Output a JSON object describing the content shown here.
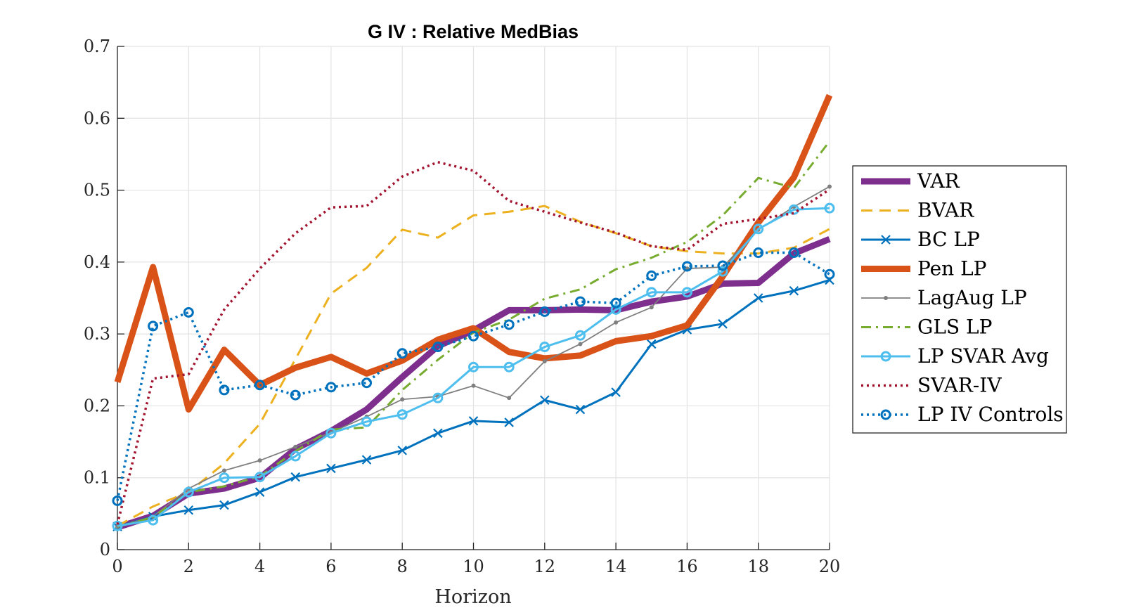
{
  "chart_data": {
    "type": "line",
    "title": "G IV : Relative MedBias",
    "xlabel": "Horizon",
    "ylabel": "",
    "xlim": [
      0,
      20
    ],
    "ylim": [
      0,
      0.7
    ],
    "xticks": [
      0,
      2,
      4,
      6,
      8,
      10,
      12,
      14,
      16,
      18,
      20
    ],
    "yticks": [
      0,
      0.1,
      0.2,
      0.3,
      0.4,
      0.5,
      0.6,
      0.7
    ],
    "xtick_labels": [
      "0",
      "2",
      "4",
      "6",
      "8",
      "10",
      "12",
      "14",
      "16",
      "18",
      "20"
    ],
    "ytick_labels": [
      "0",
      "0.1",
      "0.2",
      "0.3",
      "0.4",
      "0.5",
      "0.6",
      "0.7"
    ],
    "grid": true,
    "legend_position": "right",
    "x": [
      0,
      1,
      2,
      3,
      4,
      5,
      6,
      7,
      8,
      9,
      10,
      11,
      12,
      13,
      14,
      15,
      16,
      17,
      18,
      19,
      20
    ],
    "series": [
      {
        "name": "VAR",
        "color": "#7E2F8E",
        "style": "solid",
        "width": 9,
        "marker": "none",
        "values": [
          0.031,
          0.047,
          0.078,
          0.085,
          0.1,
          0.14,
          0.165,
          0.195,
          0.24,
          0.283,
          0.305,
          0.333,
          0.333,
          0.334,
          0.333,
          0.345,
          0.352,
          0.37,
          0.371,
          0.412,
          0.432
        ]
      },
      {
        "name": "BVAR",
        "color": "#EDB120",
        "style": "dashed",
        "width": 3,
        "marker": "none",
        "values": [
          0.033,
          0.06,
          0.08,
          0.12,
          0.175,
          0.265,
          0.356,
          0.392,
          0.445,
          0.434,
          0.465,
          0.47,
          0.478,
          0.456,
          0.44,
          0.422,
          0.415,
          0.412,
          0.412,
          0.42,
          0.446
        ]
      },
      {
        "name": "BC LP",
        "color": "#0072BD",
        "style": "solid",
        "width": 3,
        "marker": "x",
        "values": [
          0.032,
          0.046,
          0.055,
          0.062,
          0.08,
          0.101,
          0.113,
          0.125,
          0.138,
          0.162,
          0.179,
          0.177,
          0.208,
          0.195,
          0.219,
          0.286,
          0.306,
          0.314,
          0.35,
          0.36,
          0.375
        ]
      },
      {
        "name": "Pen LP",
        "color": "#D95319",
        "style": "solid",
        "width": 9,
        "marker": "none",
        "values": [
          0.233,
          0.393,
          0.195,
          0.278,
          0.229,
          0.253,
          0.268,
          0.245,
          0.263,
          0.292,
          0.308,
          0.275,
          0.266,
          0.27,
          0.29,
          0.297,
          0.312,
          0.38,
          0.455,
          0.518,
          0.632
        ]
      },
      {
        "name": "LagAug LP",
        "color": "#7F7F7F",
        "style": "solid",
        "width": 1.8,
        "marker": "dot",
        "values": [
          0.032,
          0.046,
          0.085,
          0.11,
          0.124,
          0.143,
          0.163,
          0.185,
          0.209,
          0.213,
          0.228,
          0.211,
          0.262,
          0.286,
          0.316,
          0.337,
          0.391,
          0.393,
          0.445,
          0.477,
          0.505
        ]
      },
      {
        "name": "GLS LP",
        "color": "#77AC30",
        "style": "dashdot",
        "width": 3,
        "marker": "none",
        "values": [
          0.032,
          0.045,
          0.08,
          0.088,
          0.102,
          0.137,
          0.167,
          0.17,
          0.222,
          0.264,
          0.302,
          0.32,
          0.349,
          0.362,
          0.39,
          0.406,
          0.428,
          0.465,
          0.517,
          0.503,
          0.568
        ]
      },
      {
        "name": "LP SVAR Avg",
        "color": "#4DBEEE",
        "style": "solid",
        "width": 3,
        "marker": "o",
        "values": [
          0.033,
          0.041,
          0.08,
          0.1,
          0.101,
          0.13,
          0.162,
          0.178,
          0.188,
          0.211,
          0.254,
          0.254,
          0.282,
          0.298,
          0.334,
          0.358,
          0.358,
          0.387,
          0.446,
          0.473,
          0.475
        ]
      },
      {
        "name": "SVAR-IV",
        "color": "#A2142F",
        "style": "dotted",
        "width": 3.5,
        "marker": "none",
        "values": [
          0.035,
          0.238,
          0.244,
          0.334,
          0.391,
          0.44,
          0.476,
          0.478,
          0.519,
          0.539,
          0.527,
          0.485,
          0.47,
          0.455,
          0.441,
          0.422,
          0.417,
          0.453,
          0.46,
          0.468,
          0.501
        ]
      },
      {
        "name": "LP IV Controls",
        "color": "#0072BD",
        "style": "dotted",
        "width": 3.5,
        "marker": "o",
        "values": [
          0.068,
          0.311,
          0.33,
          0.222,
          0.229,
          0.215,
          0.226,
          0.232,
          0.273,
          0.282,
          0.297,
          0.313,
          0.331,
          0.345,
          0.343,
          0.381,
          0.394,
          0.395,
          0.413,
          0.413,
          0.383
        ]
      }
    ]
  }
}
